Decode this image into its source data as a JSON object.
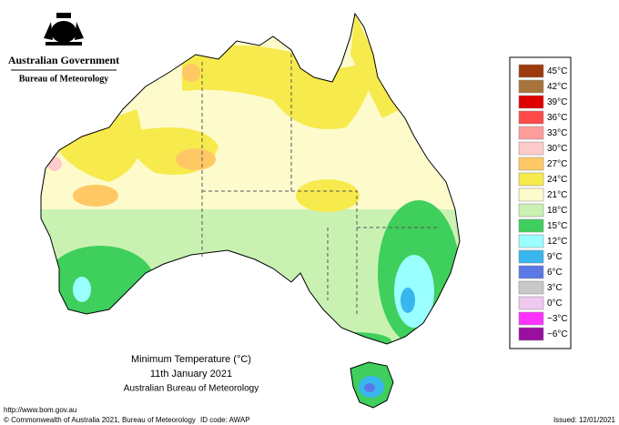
{
  "header": {
    "government": "Australian Government",
    "bureau": "Bureau of Meteorology"
  },
  "legend": {
    "items": [
      {
        "label": "45°C",
        "value": 45,
        "color": "#9c3a0b"
      },
      {
        "label": "42°C",
        "value": 42,
        "color": "#a8743c"
      },
      {
        "label": "39°C",
        "value": 39,
        "color": "#e00000"
      },
      {
        "label": "36°C",
        "value": 36,
        "color": "#ff4a4a"
      },
      {
        "label": "33°C",
        "value": 33,
        "color": "#ff9c9c"
      },
      {
        "label": "30°C",
        "value": 30,
        "color": "#ffcaca"
      },
      {
        "label": "27°C",
        "value": 27,
        "color": "#ffc864"
      },
      {
        "label": "24°C",
        "value": 24,
        "color": "#f7ea4c"
      },
      {
        "label": "21°C",
        "value": 21,
        "color": "#fdfbcc"
      },
      {
        "label": "18°C",
        "value": 18,
        "color": "#c9f2b2"
      },
      {
        "label": "15°C",
        "value": 15,
        "color": "#3fcf5c"
      },
      {
        "label": "12°C",
        "value": 12,
        "color": "#99ffff"
      },
      {
        "label": "9°C",
        "value": 9,
        "color": "#3ab6ee"
      },
      {
        "label": "6°C",
        "value": 6,
        "color": "#5c78e6"
      },
      {
        "label": "3°C",
        "value": 3,
        "color": "#c8c8c8"
      },
      {
        "label": "0°C",
        "value": 0,
        "color": "#f0c8f0"
      },
      {
        "label": "−3°C",
        "value": -3,
        "color": "#ff33ff"
      },
      {
        "label": "−6°C",
        "value": -6,
        "color": "#9a0fa0"
      }
    ]
  },
  "caption": {
    "title": "Minimum Temperature (°C)",
    "date": "11th January 2021",
    "source": "Australian Bureau of Meteorology"
  },
  "footer": {
    "url": "http://www.bom.gov.au",
    "copyright": "© Commonwealth of Australia 2021, Bureau of Meteorology",
    "id": "ID code: AWAP",
    "issued": "Issued: 12/01/2021"
  }
}
